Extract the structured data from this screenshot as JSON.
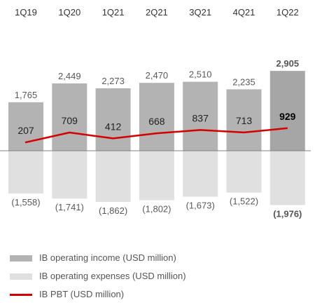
{
  "chart_data": {
    "type": "bar",
    "categories": [
      "1Q19",
      "1Q20",
      "1Q21",
      "2Q21",
      "3Q21",
      "4Q21",
      "1Q22"
    ],
    "series": [
      {
        "name": "IB operating income (USD million)",
        "type": "bar",
        "values": [
          1765,
          2449,
          2273,
          2470,
          2510,
          2235,
          2905
        ],
        "labels": [
          "1,765",
          "2,449",
          "2,273",
          "2,470",
          "2,510",
          "2,235",
          "2,905"
        ]
      },
      {
        "name": "IB operating expenses (USD million)",
        "type": "bar",
        "values": [
          -1558,
          -1741,
          -1862,
          -1802,
          -1673,
          -1522,
          -1976
        ],
        "labels": [
          "(1,558)",
          "(1,741)",
          "(1,862)",
          "(1,802)",
          "(1,673)",
          "(1,522)",
          "(1,976)"
        ]
      },
      {
        "name": "IB PBT (USD million)",
        "type": "line",
        "values": [
          207,
          709,
          412,
          668,
          837,
          713,
          929
        ],
        "labels": [
          "207",
          "709",
          "412",
          "668",
          "837",
          "713",
          "929"
        ]
      }
    ],
    "highlight_category": "1Q22",
    "colors": {
      "income": "#b3b3b3",
      "income_highlight": "#a6a6a6",
      "expenses": "#e0e0e0",
      "pbt_line": "#d40000",
      "baseline": "#808080",
      "label": "#595959",
      "label_highlight": "#000000"
    }
  },
  "legend": {
    "income": "IB operating income (USD million)",
    "expenses": "IB operating expenses (USD million)",
    "pbt": "IB PBT (USD million)"
  }
}
